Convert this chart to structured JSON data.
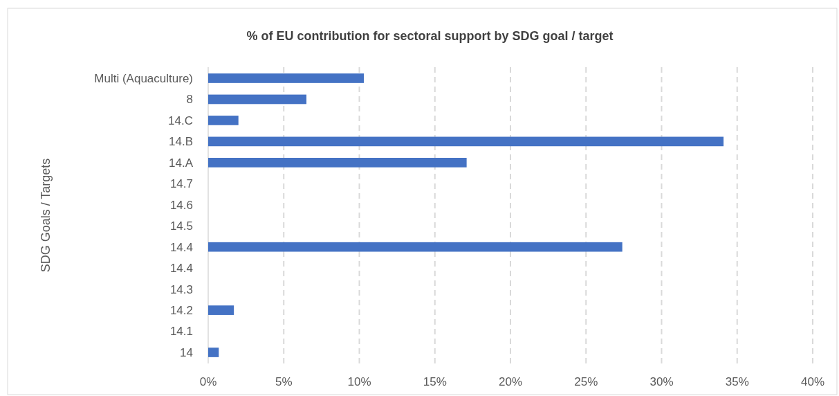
{
  "chart_data": {
    "type": "bar",
    "orientation": "horizontal",
    "title": "%  of EU contribution for sectoral support by SDG goal / target",
    "ylabel": "SDG Goals  / Targets",
    "categories": [
      "Multi (Aquaculture)",
      "8",
      "14.C",
      "14.B",
      "14.A",
      "14.7",
      "14.6",
      "14.5",
      "14.4",
      "14.4",
      "14.3",
      "14.2",
      "14.1",
      "14"
    ],
    "values": [
      10.3,
      6.5,
      2.0,
      34.1,
      17.1,
      null,
      null,
      null,
      27.4,
      null,
      null,
      1.7,
      null,
      0.7
    ],
    "color": "#4472c4",
    "xlim": [
      0,
      40
    ],
    "xticks": [
      {
        "value": 0,
        "label": "0%"
      },
      {
        "value": 5,
        "label": "5%"
      },
      {
        "value": 10,
        "label": "10%"
      },
      {
        "value": 15,
        "label": "15%"
      },
      {
        "value": 20,
        "label": "20%"
      },
      {
        "value": 25,
        "label": "25%"
      },
      {
        "value": 30,
        "label": "30%"
      },
      {
        "value": 35,
        "label": "35%"
      },
      {
        "value": 40,
        "label": "40%"
      }
    ],
    "grid": "x"
  }
}
